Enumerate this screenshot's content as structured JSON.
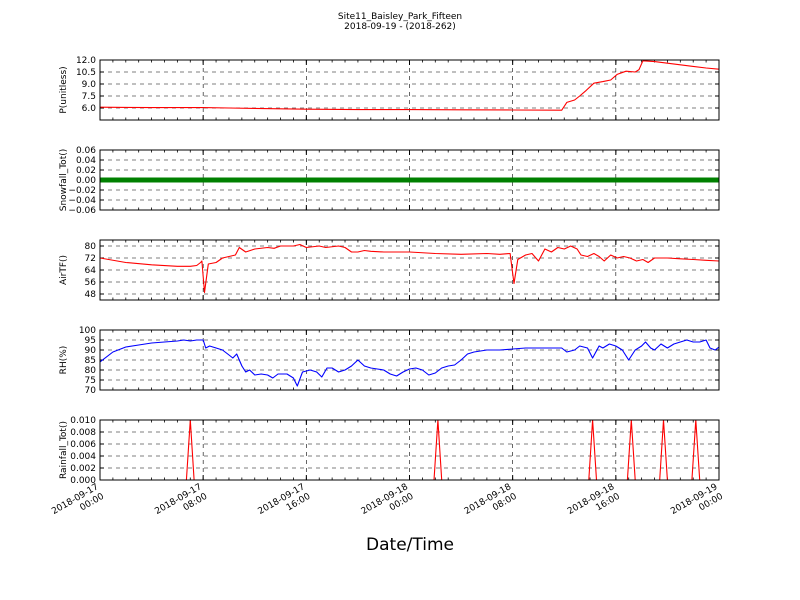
{
  "title_line1": "Site11_Baisley_Park_Fifteen",
  "title_line2": "2018-09-19 - (2018-262)",
  "xlabel": "Date/Time",
  "chart_data": {
    "type": "line",
    "x_tick_labels": [
      [
        "2018-09-17",
        "00:00"
      ],
      [
        "2018-09-17",
        "08:00"
      ],
      [
        "2018-09-17",
        "16:00"
      ],
      [
        "2018-09-18",
        "00:00"
      ],
      [
        "2018-09-18",
        "08:00"
      ],
      [
        "2018-09-18",
        "16:00"
      ],
      [
        "2018-09-19",
        "00:00"
      ]
    ],
    "xlim_hours": [
      0,
      48
    ],
    "grid": true,
    "panels": [
      {
        "ylabel": "P(unitless)",
        "ylim": [
          4.5,
          12.0
        ],
        "yticks": [
          6.0,
          7.5,
          9.0,
          10.5,
          12.0
        ],
        "ytick_labels": [
          "6.0",
          "7.5",
          "9.0",
          "10.5",
          "12.0"
        ],
        "color": "#ff0000",
        "style": "line",
        "points": [
          [
            0,
            6.1
          ],
          [
            4,
            6.05
          ],
          [
            8,
            6.05
          ],
          [
            10,
            6.0
          ],
          [
            12,
            5.95
          ],
          [
            16,
            5.85
          ],
          [
            20,
            5.8
          ],
          [
            24,
            5.8
          ],
          [
            28,
            5.78
          ],
          [
            32,
            5.75
          ],
          [
            35.8,
            5.72
          ],
          [
            36.2,
            6.7
          ],
          [
            36.8,
            7.0
          ],
          [
            37.2,
            7.5
          ],
          [
            37.7,
            8.2
          ],
          [
            38.3,
            9.1
          ],
          [
            39,
            9.3
          ],
          [
            39.6,
            9.5
          ],
          [
            40.1,
            10.2
          ],
          [
            40.8,
            10.6
          ],
          [
            41.5,
            10.5
          ],
          [
            41.8,
            10.8
          ],
          [
            42.1,
            11.9
          ],
          [
            43,
            11.8
          ],
          [
            44,
            11.6
          ],
          [
            45,
            11.4
          ],
          [
            46,
            11.2
          ],
          [
            47,
            11.0
          ],
          [
            48,
            10.85
          ]
        ]
      },
      {
        "ylabel": "Snowfall_Tot()",
        "ylim": [
          -0.06,
          0.06
        ],
        "yticks": [
          -0.06,
          -0.04,
          -0.02,
          0.0,
          0.02,
          0.04,
          0.06
        ],
        "ytick_labels": [
          "−0.06",
          "−0.04",
          "−0.02",
          "0.00",
          "0.02",
          "0.04",
          "0.06"
        ],
        "color": "#008000",
        "style": "thick",
        "points": [
          [
            0,
            0.0
          ],
          [
            48,
            0.0
          ]
        ]
      },
      {
        "ylabel": "AirTF()",
        "ylim": [
          44,
          84
        ],
        "yticks": [
          48,
          56,
          64,
          72,
          80
        ],
        "ytick_labels": [
          "48",
          "56",
          "64",
          "72",
          "80"
        ],
        "color": "#ff0000",
        "style": "line",
        "points": [
          [
            0,
            72
          ],
          [
            2,
            69
          ],
          [
            4,
            67.5
          ],
          [
            6,
            66.5
          ],
          [
            7,
            66.5
          ],
          [
            7.5,
            67
          ],
          [
            7.8,
            69
          ],
          [
            7.9,
            70
          ],
          [
            8.1,
            49
          ],
          [
            8.4,
            68
          ],
          [
            9,
            69
          ],
          [
            9.5,
            72
          ],
          [
            10,
            73
          ],
          [
            10.5,
            74
          ],
          [
            10.8,
            79
          ],
          [
            11.3,
            76
          ],
          [
            12,
            78
          ],
          [
            13,
            79
          ],
          [
            13.5,
            78.5
          ],
          [
            14,
            80
          ],
          [
            15,
            80
          ],
          [
            15.5,
            81
          ],
          [
            16,
            79
          ],
          [
            17,
            80
          ],
          [
            17.5,
            79
          ],
          [
            18.5,
            80
          ],
          [
            19,
            79
          ],
          [
            19.5,
            76
          ],
          [
            20,
            76
          ],
          [
            20.5,
            77
          ],
          [
            21,
            76.5
          ],
          [
            22,
            76
          ],
          [
            24,
            76
          ],
          [
            26,
            75
          ],
          [
            28,
            74.5
          ],
          [
            30,
            75
          ],
          [
            31,
            74.5
          ],
          [
            31.8,
            75
          ],
          [
            32.1,
            55
          ],
          [
            32.4,
            71
          ],
          [
            33,
            74
          ],
          [
            33.5,
            75
          ],
          [
            34,
            70
          ],
          [
            34.5,
            78
          ],
          [
            35,
            76
          ],
          [
            35.5,
            79
          ],
          [
            36,
            78
          ],
          [
            36.5,
            80
          ],
          [
            37,
            78
          ],
          [
            37.3,
            74
          ],
          [
            37.8,
            73
          ],
          [
            38.3,
            75
          ],
          [
            38.7,
            73
          ],
          [
            39.1,
            70
          ],
          [
            39.6,
            74
          ],
          [
            40.1,
            72
          ],
          [
            40.6,
            73
          ],
          [
            41.1,
            72
          ],
          [
            41.6,
            70
          ],
          [
            42.1,
            71
          ],
          [
            42.5,
            69
          ],
          [
            43,
            72
          ],
          [
            44,
            72
          ],
          [
            45,
            71.5
          ],
          [
            46,
            71
          ],
          [
            47,
            70.5
          ],
          [
            48,
            70
          ]
        ]
      },
      {
        "ylabel": "RH(%)",
        "ylim": [
          70,
          100
        ],
        "yticks": [
          70,
          75,
          80,
          85,
          90,
          95,
          100
        ],
        "ytick_labels": [
          "70",
          "75",
          "80",
          "85",
          "90",
          "95",
          "100"
        ],
        "color": "#0000ff",
        "style": "line",
        "points": [
          [
            0,
            84
          ],
          [
            1,
            89
          ],
          [
            2,
            91.5
          ],
          [
            3,
            92.5
          ],
          [
            4,
            93.5
          ],
          [
            5,
            94
          ],
          [
            6,
            94.5
          ],
          [
            6.5,
            95
          ],
          [
            7,
            94.5
          ],
          [
            7.5,
            95
          ],
          [
            8,
            95
          ],
          [
            8.2,
            91
          ],
          [
            8.5,
            92
          ],
          [
            9,
            91
          ],
          [
            9.5,
            90
          ],
          [
            10,
            87.5
          ],
          [
            10.3,
            86
          ],
          [
            10.6,
            88
          ],
          [
            11,
            82
          ],
          [
            11.3,
            79
          ],
          [
            11.6,
            80
          ],
          [
            12,
            77.5
          ],
          [
            12.5,
            78
          ],
          [
            13,
            77.5
          ],
          [
            13.4,
            76
          ],
          [
            13.8,
            78
          ],
          [
            14.5,
            78
          ],
          [
            15,
            76
          ],
          [
            15.3,
            72
          ],
          [
            15.7,
            79
          ],
          [
            16.3,
            80
          ],
          [
            16.8,
            79
          ],
          [
            17.2,
            76.5
          ],
          [
            17.6,
            81
          ],
          [
            18,
            81
          ],
          [
            18.5,
            79
          ],
          [
            19,
            80
          ],
          [
            19.5,
            82
          ],
          [
            20,
            85
          ],
          [
            20.5,
            82
          ],
          [
            21,
            81
          ],
          [
            21.5,
            80.5
          ],
          [
            22,
            80
          ],
          [
            22.5,
            78
          ],
          [
            23,
            77
          ],
          [
            23.5,
            79
          ],
          [
            24,
            80.5
          ],
          [
            24.5,
            81
          ],
          [
            25,
            80
          ],
          [
            25.5,
            77.5
          ],
          [
            26,
            78.5
          ],
          [
            26.5,
            81
          ],
          [
            27,
            82
          ],
          [
            27.5,
            82.5
          ],
          [
            28,
            85
          ],
          [
            28.5,
            88
          ],
          [
            29,
            89
          ],
          [
            30,
            90
          ],
          [
            31,
            90
          ],
          [
            32,
            90.5
          ],
          [
            33,
            91
          ],
          [
            34,
            91
          ],
          [
            35,
            91
          ],
          [
            35.8,
            91
          ],
          [
            36.2,
            89
          ],
          [
            36.8,
            90
          ],
          [
            37.2,
            92
          ],
          [
            37.8,
            91
          ],
          [
            38.2,
            86
          ],
          [
            38.7,
            92
          ],
          [
            39,
            91
          ],
          [
            39.5,
            93
          ],
          [
            40,
            92
          ],
          [
            40.5,
            90
          ],
          [
            41,
            85
          ],
          [
            41.5,
            90
          ],
          [
            42,
            92
          ],
          [
            42.3,
            94
          ],
          [
            42.7,
            91
          ],
          [
            43,
            90
          ],
          [
            43.5,
            93
          ],
          [
            44,
            91
          ],
          [
            44.5,
            93
          ],
          [
            45,
            94
          ],
          [
            45.5,
            95
          ],
          [
            46,
            94
          ],
          [
            46.5,
            94
          ],
          [
            47,
            95
          ],
          [
            47.3,
            91
          ],
          [
            47.7,
            90
          ],
          [
            48,
            91.5
          ]
        ]
      },
      {
        "ylabel": "Rainfall_Tot()",
        "ylim": [
          0.0,
          0.01
        ],
        "yticks": [
          0.0,
          0.002,
          0.004,
          0.006,
          0.008,
          0.01
        ],
        "ytick_labels": [
          "0.000",
          "0.002",
          "0.004",
          "0.006",
          "0.008",
          "0.010"
        ],
        "color": "#ff0000",
        "style": "line",
        "points": [
          [
            0,
            0
          ],
          [
            6.7,
            0
          ],
          [
            7,
            0.01
          ],
          [
            7.3,
            0
          ],
          [
            25.9,
            0
          ],
          [
            26.2,
            0.01
          ],
          [
            26.5,
            0
          ],
          [
            37.9,
            0
          ],
          [
            38.2,
            0.01
          ],
          [
            38.5,
            0
          ],
          [
            40.9,
            0
          ],
          [
            41.2,
            0.01
          ],
          [
            41.5,
            0
          ],
          [
            43.4,
            0
          ],
          [
            43.7,
            0.01
          ],
          [
            44,
            0
          ],
          [
            45.9,
            0
          ],
          [
            46.2,
            0.01
          ],
          [
            46.5,
            0
          ],
          [
            48,
            0
          ]
        ]
      }
    ]
  }
}
